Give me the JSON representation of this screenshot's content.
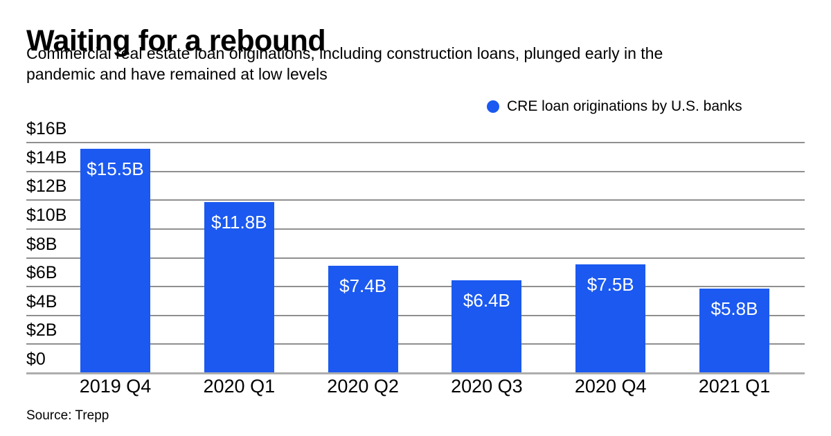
{
  "header": {
    "title": "Waiting for a rebound",
    "subtitle_line1": "Commercial real estate loan originations, including construction loans, plunged early in the",
    "subtitle_line2": "pandemic and have remained at low levels"
  },
  "legend": {
    "label": "CRE loan originations by U.S. banks",
    "marker_color": "#1b59f0"
  },
  "footer": {
    "source": "Source: Trepp"
  },
  "chart_data": {
    "type": "bar",
    "title": "Waiting for a rebound",
    "subtitle": "Commercial real estate loan originations, including construction loans, plunged early in the pandemic and have remained at low levels",
    "series_name": "CRE loan originations by U.S. banks",
    "categories": [
      "2019 Q4",
      "2020 Q1",
      "2020 Q2",
      "2020 Q3",
      "2020 Q4",
      "2021 Q1"
    ],
    "values": [
      15.5,
      11.8,
      7.4,
      6.4,
      7.5,
      5.8
    ],
    "value_labels": [
      "$15.5B",
      "$11.8B",
      "$7.4B",
      "$6.4B",
      "$7.5B",
      "$5.8B"
    ],
    "unit": "billions of U.S. dollars",
    "ylim": [
      0,
      16
    ],
    "ytick_values": [
      16,
      14,
      12,
      10,
      8,
      6,
      4,
      2,
      0
    ],
    "ytick_labels": [
      "$16B",
      "$14B",
      "$12B",
      "$10B",
      "$8B",
      "$6B",
      "$4B",
      "$2B",
      "$0"
    ],
    "grid": true,
    "legend_position": "top-right",
    "bar_color": "#1b59f0",
    "gridline_color": "#8f8f8f",
    "axis_line_color": "#adadad",
    "value_label_color": "#ffffff",
    "source": "Source: Trepp"
  }
}
